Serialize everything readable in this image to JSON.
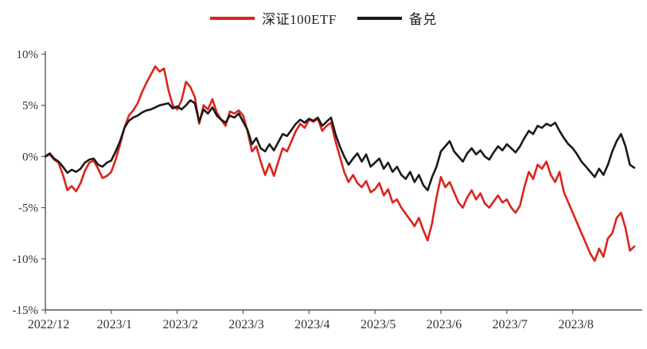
{
  "chart_data": {
    "type": "line",
    "title": "",
    "xlabel": "",
    "ylabel": "",
    "ylim": [
      -15,
      10
    ],
    "grid": false,
    "legend_position": "top-center",
    "axis_color": "#595959",
    "x_tick_labels": [
      "2022/12",
      "2023/1",
      "2023/2",
      "2023/3",
      "2023/4",
      "2023/5",
      "2023/6",
      "2023/7",
      "2023/8"
    ],
    "y_ticks": [
      10,
      5,
      0,
      -5,
      -10,
      -15
    ],
    "y_tick_labels": [
      "10%",
      "5%",
      "0%",
      "-5%",
      "-10%",
      "-15%"
    ],
    "points_per_month": 15,
    "series": [
      {
        "name": "深证100ETF",
        "color": "#da251c",
        "values": [
          0.0,
          0.2,
          -0.3,
          -0.6,
          -1.8,
          -3.3,
          -2.9,
          -3.4,
          -2.6,
          -1.4,
          -0.6,
          -0.4,
          -1.2,
          -2.1,
          -1.9,
          -1.5,
          -0.3,
          1.2,
          2.8,
          4.0,
          4.5,
          5.2,
          6.3,
          7.2,
          8.0,
          8.8,
          8.3,
          8.6,
          6.5,
          5.0,
          4.6,
          5.5,
          7.3,
          6.8,
          5.8,
          3.2,
          5.0,
          4.6,
          5.6,
          4.3,
          3.6,
          3.0,
          4.4,
          4.2,
          4.5,
          4.0,
          2.5,
          0.5,
          1.0,
          -0.5,
          -1.8,
          -0.7,
          -1.9,
          -0.5,
          0.8,
          0.5,
          1.5,
          2.5,
          3.2,
          2.8,
          3.6,
          3.4,
          3.7,
          2.5,
          3.0,
          3.3,
          1.5,
          0.0,
          -1.5,
          -2.5,
          -1.8,
          -2.6,
          -3.0,
          -2.4,
          -3.5,
          -3.2,
          -2.6,
          -3.8,
          -3.2,
          -4.5,
          -4.2,
          -5.0,
          -5.6,
          -6.2,
          -6.8,
          -6.0,
          -7.2,
          -8.2,
          -6.5,
          -4.0,
          -2.0,
          -3.0,
          -2.5,
          -3.5,
          -4.5,
          -5.0,
          -4.0,
          -3.3,
          -4.2,
          -3.6,
          -4.6,
          -5.0,
          -4.4,
          -3.8,
          -4.5,
          -4.2,
          -5.0,
          -5.5,
          -4.8,
          -3.0,
          -1.5,
          -2.2,
          -0.8,
          -1.2,
          -0.5,
          -1.8,
          -2.5,
          -1.5,
          -3.5,
          -4.5,
          -5.5,
          -6.5,
          -7.5,
          -8.5,
          -9.5,
          -10.2,
          -9.0,
          -9.8,
          -8.0,
          -7.5,
          -6.0,
          -5.5,
          -7.0,
          -9.2,
          -8.8
        ]
      },
      {
        "name": "备兑",
        "color": "#1a1a1a",
        "values": [
          0.0,
          0.3,
          -0.2,
          -0.5,
          -1.0,
          -1.6,
          -1.3,
          -1.5,
          -1.2,
          -0.6,
          -0.3,
          -0.2,
          -0.8,
          -1.0,
          -0.6,
          -0.4,
          0.5,
          1.5,
          2.8,
          3.5,
          3.8,
          4.0,
          4.3,
          4.5,
          4.6,
          4.8,
          5.0,
          5.1,
          5.2,
          4.7,
          4.9,
          4.6,
          5.0,
          5.5,
          5.2,
          3.4,
          4.6,
          4.2,
          4.8,
          4.0,
          3.6,
          3.3,
          4.0,
          3.8,
          4.2,
          3.4,
          2.6,
          1.2,
          1.8,
          0.8,
          0.5,
          1.2,
          0.6,
          1.4,
          2.2,
          2.0,
          2.6,
          3.2,
          3.6,
          3.3,
          3.7,
          3.5,
          3.8,
          3.0,
          3.4,
          3.8,
          2.2,
          1.0,
          0.0,
          -0.8,
          -0.2,
          0.3,
          -0.5,
          0.2,
          -1.0,
          -0.6,
          -0.2,
          -1.2,
          -0.6,
          -1.5,
          -1.0,
          -1.8,
          -2.2,
          -1.5,
          -2.5,
          -1.8,
          -2.8,
          -3.3,
          -2.0,
          -1.0,
          0.5,
          1.0,
          1.5,
          0.5,
          0.0,
          -0.5,
          0.3,
          0.8,
          0.2,
          0.6,
          0.0,
          -0.3,
          0.4,
          1.0,
          0.6,
          1.2,
          0.8,
          0.4,
          1.0,
          1.8,
          2.5,
          2.2,
          3.0,
          2.8,
          3.2,
          3.0,
          3.3,
          2.5,
          1.8,
          1.2,
          0.8,
          0.2,
          -0.5,
          -1.0,
          -1.5,
          -2.0,
          -1.2,
          -1.8,
          -0.8,
          0.5,
          1.5,
          2.2,
          1.0,
          -0.8,
          -1.1
        ]
      }
    ]
  }
}
